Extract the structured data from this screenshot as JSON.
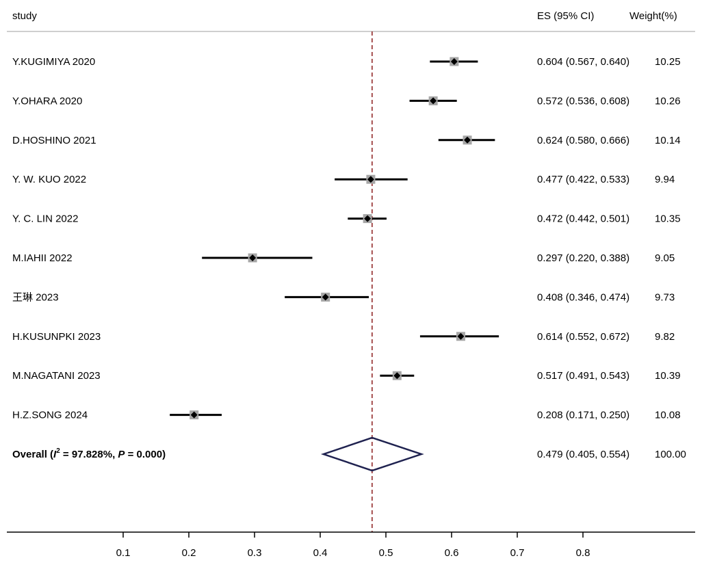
{
  "header": {
    "study_label": "study",
    "es_label": "ES (95% CI)",
    "weight_label": "Weight(%)"
  },
  "chart_data": {
    "type": "forest",
    "x_ticks": [
      0.1,
      0.2,
      0.3,
      0.4,
      0.5,
      0.6,
      0.7,
      0.8
    ],
    "reference_line": 0.479,
    "studies": [
      {
        "study": "Y.KUGIMIYA 2020",
        "es": 0.604,
        "lo": 0.567,
        "hi": 0.64,
        "es_ci": "0.604 (0.567, 0.640)",
        "weight": "10.25"
      },
      {
        "study": "Y.OHARA 2020",
        "es": 0.572,
        "lo": 0.536,
        "hi": 0.608,
        "es_ci": "0.572 (0.536, 0.608)",
        "weight": "10.26"
      },
      {
        "study": "D.HOSHINO 2021",
        "es": 0.624,
        "lo": 0.58,
        "hi": 0.666,
        "es_ci": "0.624 (0.580, 0.666)",
        "weight": "10.14"
      },
      {
        "study": "Y. W. KUO 2022",
        "es": 0.477,
        "lo": 0.422,
        "hi": 0.533,
        "es_ci": "0.477 (0.422, 0.533)",
        "weight": "9.94"
      },
      {
        "study": "Y. C. LIN 2022",
        "es": 0.472,
        "lo": 0.442,
        "hi": 0.501,
        "es_ci": "0.472 (0.442, 0.501)",
        "weight": "10.35"
      },
      {
        "study": "M.IAHII 2022",
        "es": 0.297,
        "lo": 0.22,
        "hi": 0.388,
        "es_ci": "0.297 (0.220, 0.388)",
        "weight": "9.05"
      },
      {
        "study": "王琳 2023",
        "es": 0.408,
        "lo": 0.346,
        "hi": 0.474,
        "es_ci": "0.408 (0.346, 0.474)",
        "weight": "9.73"
      },
      {
        "study": "H.KUSUNPKI 2023",
        "es": 0.614,
        "lo": 0.552,
        "hi": 0.672,
        "es_ci": "0.614 (0.552, 0.672)",
        "weight": "9.82"
      },
      {
        "study": "M.NAGATANI 2023",
        "es": 0.517,
        "lo": 0.491,
        "hi": 0.543,
        "es_ci": "0.517 (0.491, 0.543)",
        "weight": "10.39"
      },
      {
        "study": "H.Z.SONG 2024",
        "es": 0.208,
        "lo": 0.171,
        "hi": 0.25,
        "es_ci": "0.208 (0.171, 0.250)",
        "weight": "10.08"
      }
    ],
    "overall": {
      "label_prefix": "Overall  (",
      "i_letter": "I",
      "i_sup": "2",
      "label_mid": " = 97.828%, ",
      "p_letter": "P",
      "label_suffix": " = 0.000)",
      "es": 0.479,
      "lo": 0.405,
      "hi": 0.554,
      "es_ci": "0.479 (0.405, 0.554)",
      "weight": "100.00"
    },
    "colors": {
      "ci_line": "#000000",
      "box": "#a6a6a6",
      "reference_line": "#8b1a1a",
      "diamond": "#1f2250",
      "axis": "#000000",
      "header_rule": "#bfbfbf"
    }
  }
}
